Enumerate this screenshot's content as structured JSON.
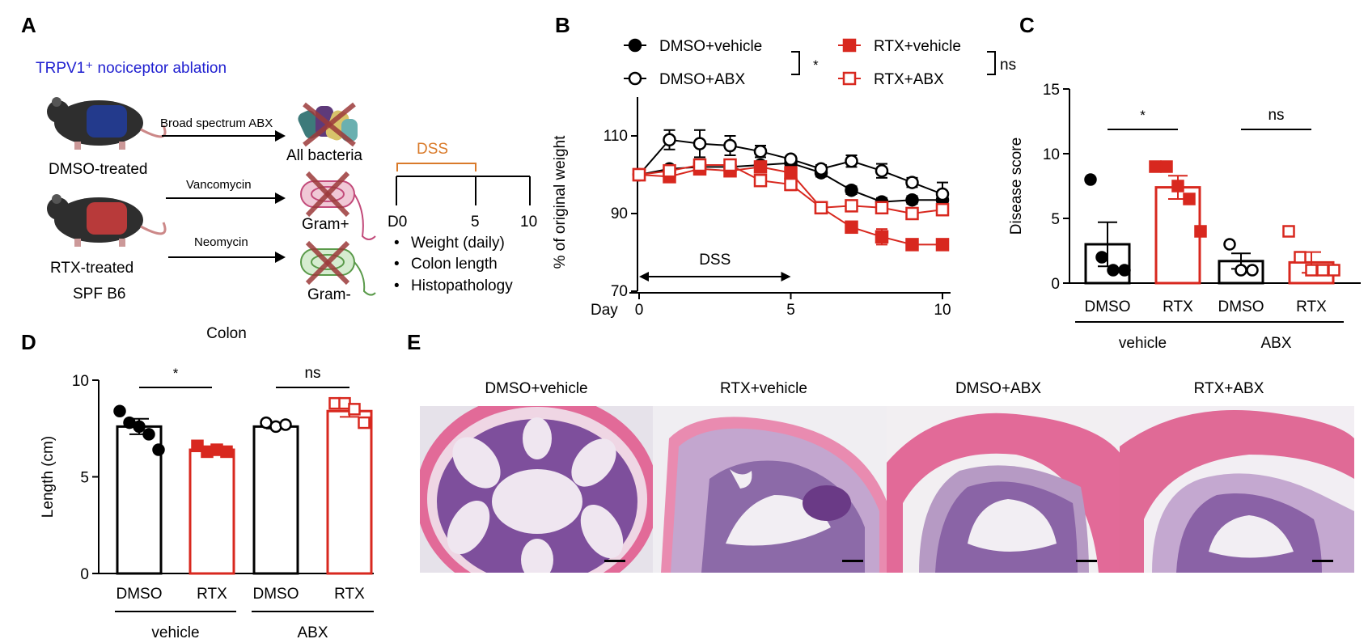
{
  "colors": {
    "black": "#000000",
    "red": "#d8281f",
    "blue": "#1f1fd0",
    "orange": "#d97a2a",
    "purple": "#6a3a86",
    "pink": "#e0568f",
    "lumen": "#f2eef3"
  },
  "panelA": {
    "letter": "A",
    "title": "TRPV1⁺ nociceptor ablation",
    "mouse_top_label": "DMSO-treated",
    "mouse_bottom_label_1": "RTX-treated",
    "mouse_bottom_label_2": "SPF B6",
    "arrows": [
      {
        "label": "Broad spectrum ABX",
        "target": "All bacteria"
      },
      {
        "label": "Vancomycin",
        "target": "Gram+"
      },
      {
        "label": "Neomycin",
        "target": "Gram-"
      }
    ],
    "icons": [
      "mouse-icon",
      "bacteria-cluster-icon",
      "gram-positive-bacterium-icon",
      "gram-negative-bacterium-icon"
    ],
    "timeline": {
      "dss_label": "DSS",
      "ticks": [
        "D0",
        "5",
        "10"
      ],
      "bullets": [
        "Weight (daily)",
        "Colon length",
        "Histopathology"
      ]
    }
  },
  "chart_data": [
    {
      "panel": "B",
      "type": "line",
      "ylabel": "% of original weight",
      "xlabel": "Day",
      "x": [
        0,
        1,
        2,
        3,
        4,
        5,
        6,
        7,
        8,
        9,
        10
      ],
      "xticks": [
        0,
        5,
        10
      ],
      "yticks": [
        70,
        90,
        110
      ],
      "ylim": [
        70,
        120
      ],
      "xlim": [
        0,
        10
      ],
      "grid": false,
      "legend_position": "top",
      "annotation": "DSS",
      "annotation_range": [
        0,
        5
      ],
      "series": [
        {
          "name": "DMSO+vehicle",
          "color": "#000000",
          "marker": "circle",
          "filled": true,
          "values": [
            100,
            101.5,
            102,
            102,
            102.5,
            103,
            100.5,
            96,
            93,
            93.5,
            93.5
          ],
          "err": [
            0,
            0.8,
            0.8,
            0.8,
            0.8,
            0.8,
            1,
            1,
            1,
            1,
            1
          ]
        },
        {
          "name": "DMSO+ABX",
          "color": "#000000",
          "marker": "circle",
          "filled": false,
          "values": [
            100,
            109,
            108,
            107.5,
            106,
            104,
            101.5,
            103.5,
            101,
            98,
            95
          ],
          "err": [
            0,
            2.5,
            3.5,
            2.5,
            1.5,
            0.8,
            1,
            1.5,
            1.8,
            1.2,
            3
          ]
        },
        {
          "name": "RTX+vehicle",
          "color": "#d8281f",
          "marker": "square",
          "filled": true,
          "values": [
            100,
            99.5,
            101.5,
            101,
            102,
            100.5,
            91.5,
            86.5,
            84,
            82,
            82
          ],
          "err": [
            0,
            0.8,
            0.8,
            0.8,
            1,
            1.5,
            1,
            1,
            2,
            1,
            1
          ]
        },
        {
          "name": "RTX+ABX",
          "color": "#d8281f",
          "marker": "square",
          "filled": false,
          "values": [
            100,
            101,
            102.5,
            102.5,
            98.5,
            97.5,
            91.5,
            92,
            91.5,
            90,
            91
          ],
          "err": [
            0,
            0.8,
            1,
            1,
            1,
            1.5,
            1,
            1,
            1.2,
            1.2,
            1.5
          ]
        }
      ],
      "significance": [
        {
          "label": "*",
          "between": [
            "DMSO+vehicle",
            "RTX+vehicle"
          ]
        },
        {
          "label": "ns",
          "between": [
            "DMSO+ABX",
            "RTX+ABX"
          ]
        }
      ]
    },
    {
      "panel": "C",
      "type": "bar",
      "ylabel": "Disease score",
      "categories": [
        "DMSO",
        "RTX",
        "DMSO",
        "RTX"
      ],
      "groups": [
        {
          "label": "vehicle",
          "span": [
            0,
            1
          ]
        },
        {
          "label": "ABX",
          "span": [
            2,
            3
          ]
        }
      ],
      "yticks": [
        0,
        5,
        10,
        15
      ],
      "ylim": [
        0,
        15
      ],
      "grid": false,
      "series": [
        {
          "category": "DMSO",
          "group": "vehicle",
          "color": "#000000",
          "filled": true,
          "marker": "circle",
          "mean": 3,
          "sem": 1.7,
          "points": [
            8,
            2,
            1,
            1
          ]
        },
        {
          "category": "RTX",
          "group": "vehicle",
          "color": "#d8281f",
          "filled": true,
          "marker": "square",
          "mean": 7.4,
          "sem": 0.9,
          "points": [
            9,
            9,
            7.5,
            6.5,
            4
          ]
        },
        {
          "category": "DMSO",
          "group": "ABX",
          "color": "#000000",
          "filled": false,
          "marker": "circle",
          "mean": 1.7,
          "sem": 0.6,
          "points": [
            3,
            1,
            1
          ]
        },
        {
          "category": "RTX",
          "group": "ABX",
          "color": "#d8281f",
          "filled": false,
          "marker": "square",
          "mean": 1.6,
          "sem": 0.8,
          "points": [
            4,
            2,
            1,
            1,
            1
          ]
        }
      ],
      "significance": [
        {
          "label": "*",
          "between": [
            0,
            1
          ]
        },
        {
          "label": "ns",
          "between": [
            2,
            3
          ]
        }
      ]
    },
    {
      "panel": "D",
      "type": "bar",
      "title": "Colon",
      "ylabel": "Length (cm)",
      "categories": [
        "DMSO",
        "RTX",
        "DMSO",
        "RTX"
      ],
      "groups": [
        {
          "label": "vehicle",
          "span": [
            0,
            1
          ]
        },
        {
          "label": "ABX",
          "span": [
            2,
            3
          ]
        }
      ],
      "yticks": [
        0,
        5,
        10
      ],
      "ylim": [
        0,
        10
      ],
      "grid": false,
      "series": [
        {
          "category": "DMSO",
          "group": "vehicle",
          "color": "#000000",
          "filled": true,
          "marker": "circle",
          "mean": 7.6,
          "sem": 0.4,
          "points": [
            8.4,
            7.8,
            7.6,
            7.2,
            6.4
          ]
        },
        {
          "category": "RTX",
          "group": "vehicle",
          "color": "#d8281f",
          "filled": true,
          "marker": "square",
          "mean": 6.4,
          "sem": 0.15,
          "points": [
            6.6,
            6.3,
            6.4,
            6.3
          ]
        },
        {
          "category": "DMSO",
          "group": "ABX",
          "color": "#000000",
          "filled": false,
          "marker": "circle",
          "mean": 7.6,
          "sem": 0.1,
          "points": [
            7.8,
            7.6,
            7.7
          ]
        },
        {
          "category": "RTX",
          "group": "ABX",
          "color": "#d8281f",
          "filled": false,
          "marker": "square",
          "mean": 8.4,
          "sem": 0.3,
          "points": [
            8.8,
            8.8,
            8.5,
            7.8
          ]
        }
      ],
      "significance": [
        {
          "label": "*",
          "between": [
            0,
            1
          ]
        },
        {
          "label": "ns",
          "between": [
            2,
            3
          ]
        }
      ]
    }
  ],
  "panelLetters": {
    "B": "B",
    "C": "C",
    "D": "D",
    "E": "E"
  },
  "panelE": {
    "images": [
      {
        "label": "DMSO+vehicle"
      },
      {
        "label": "RTX+vehicle"
      },
      {
        "label": "DMSO+ABX"
      },
      {
        "label": "RTX+ABX"
      }
    ]
  }
}
